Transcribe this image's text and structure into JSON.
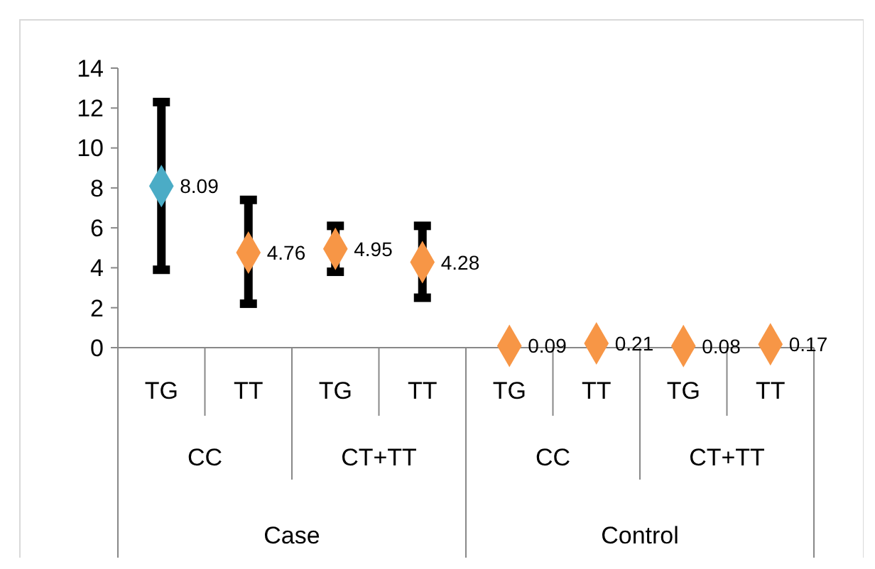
{
  "chart_data": {
    "type": "scatter",
    "categories": [
      "TG",
      "TT",
      "TG",
      "TT",
      "TG",
      "TT",
      "TG",
      "TT"
    ],
    "values": [
      8.09,
      4.76,
      4.95,
      4.28,
      0.09,
      0.21,
      0.08,
      0.17
    ],
    "colors": [
      "#4bacc6",
      "#f79646",
      "#f79646",
      "#f79646",
      "#f79646",
      "#f79646",
      "#f79646",
      "#f79646"
    ],
    "errors": [
      [
        3.9,
        12.3
      ],
      [
        2.2,
        7.4
      ],
      [
        3.8,
        6.1
      ],
      [
        2.5,
        6.1
      ],
      null,
      null,
      null,
      null
    ],
    "data_labels": true,
    "marker": "diamond",
    "annotations": [
      "CC",
      "CT+TT",
      "CC",
      "CT+TT",
      "Case",
      "Control"
    ],
    "ylim": [
      0,
      14
    ],
    "yticks": [
      0,
      2,
      4,
      6,
      8,
      10,
      12,
      14
    ],
    "grid": false
  }
}
